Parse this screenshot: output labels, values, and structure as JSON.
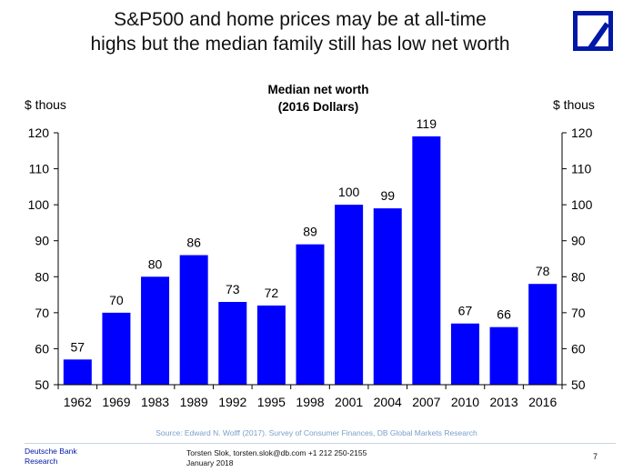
{
  "slide": {
    "title_line1": "S&P500 and home prices may be at all-time",
    "title_line2": "highs but the median family still has low net worth"
  },
  "logo": {
    "icon": "deutsche-bank-logo-icon",
    "color": "#0018a8"
  },
  "chart_data": {
    "type": "bar",
    "title_line1": "Median net worth",
    "title_line2": "(2016 Dollars)",
    "ylabel_left": "$ thous",
    "ylabel_right": "$ thous",
    "categories": [
      "1962",
      "1969",
      "1983",
      "1989",
      "1992",
      "1995",
      "1998",
      "2001",
      "2004",
      "2007",
      "2010",
      "2013",
      "2016"
    ],
    "values": [
      57,
      70,
      80,
      86,
      73,
      72,
      89,
      100,
      99,
      119,
      67,
      66,
      78
    ],
    "ylim": [
      50,
      120
    ],
    "yticks": [
      50,
      60,
      70,
      80,
      90,
      100,
      110,
      120
    ],
    "bar_color": "#0000ff",
    "grid": false,
    "data_labels": true
  },
  "source": "Source: Edward N. Wolff (2017). Survey of Consumer Finances, DB Global Markets Research",
  "footer": {
    "brand_line1": "Deutsche Bank",
    "brand_line2": "Research",
    "contact_line1": "Torsten Slok, torsten.slok@db.com  +1 212 250-2155",
    "contact_line2": "January 2018",
    "page_number": "7"
  }
}
